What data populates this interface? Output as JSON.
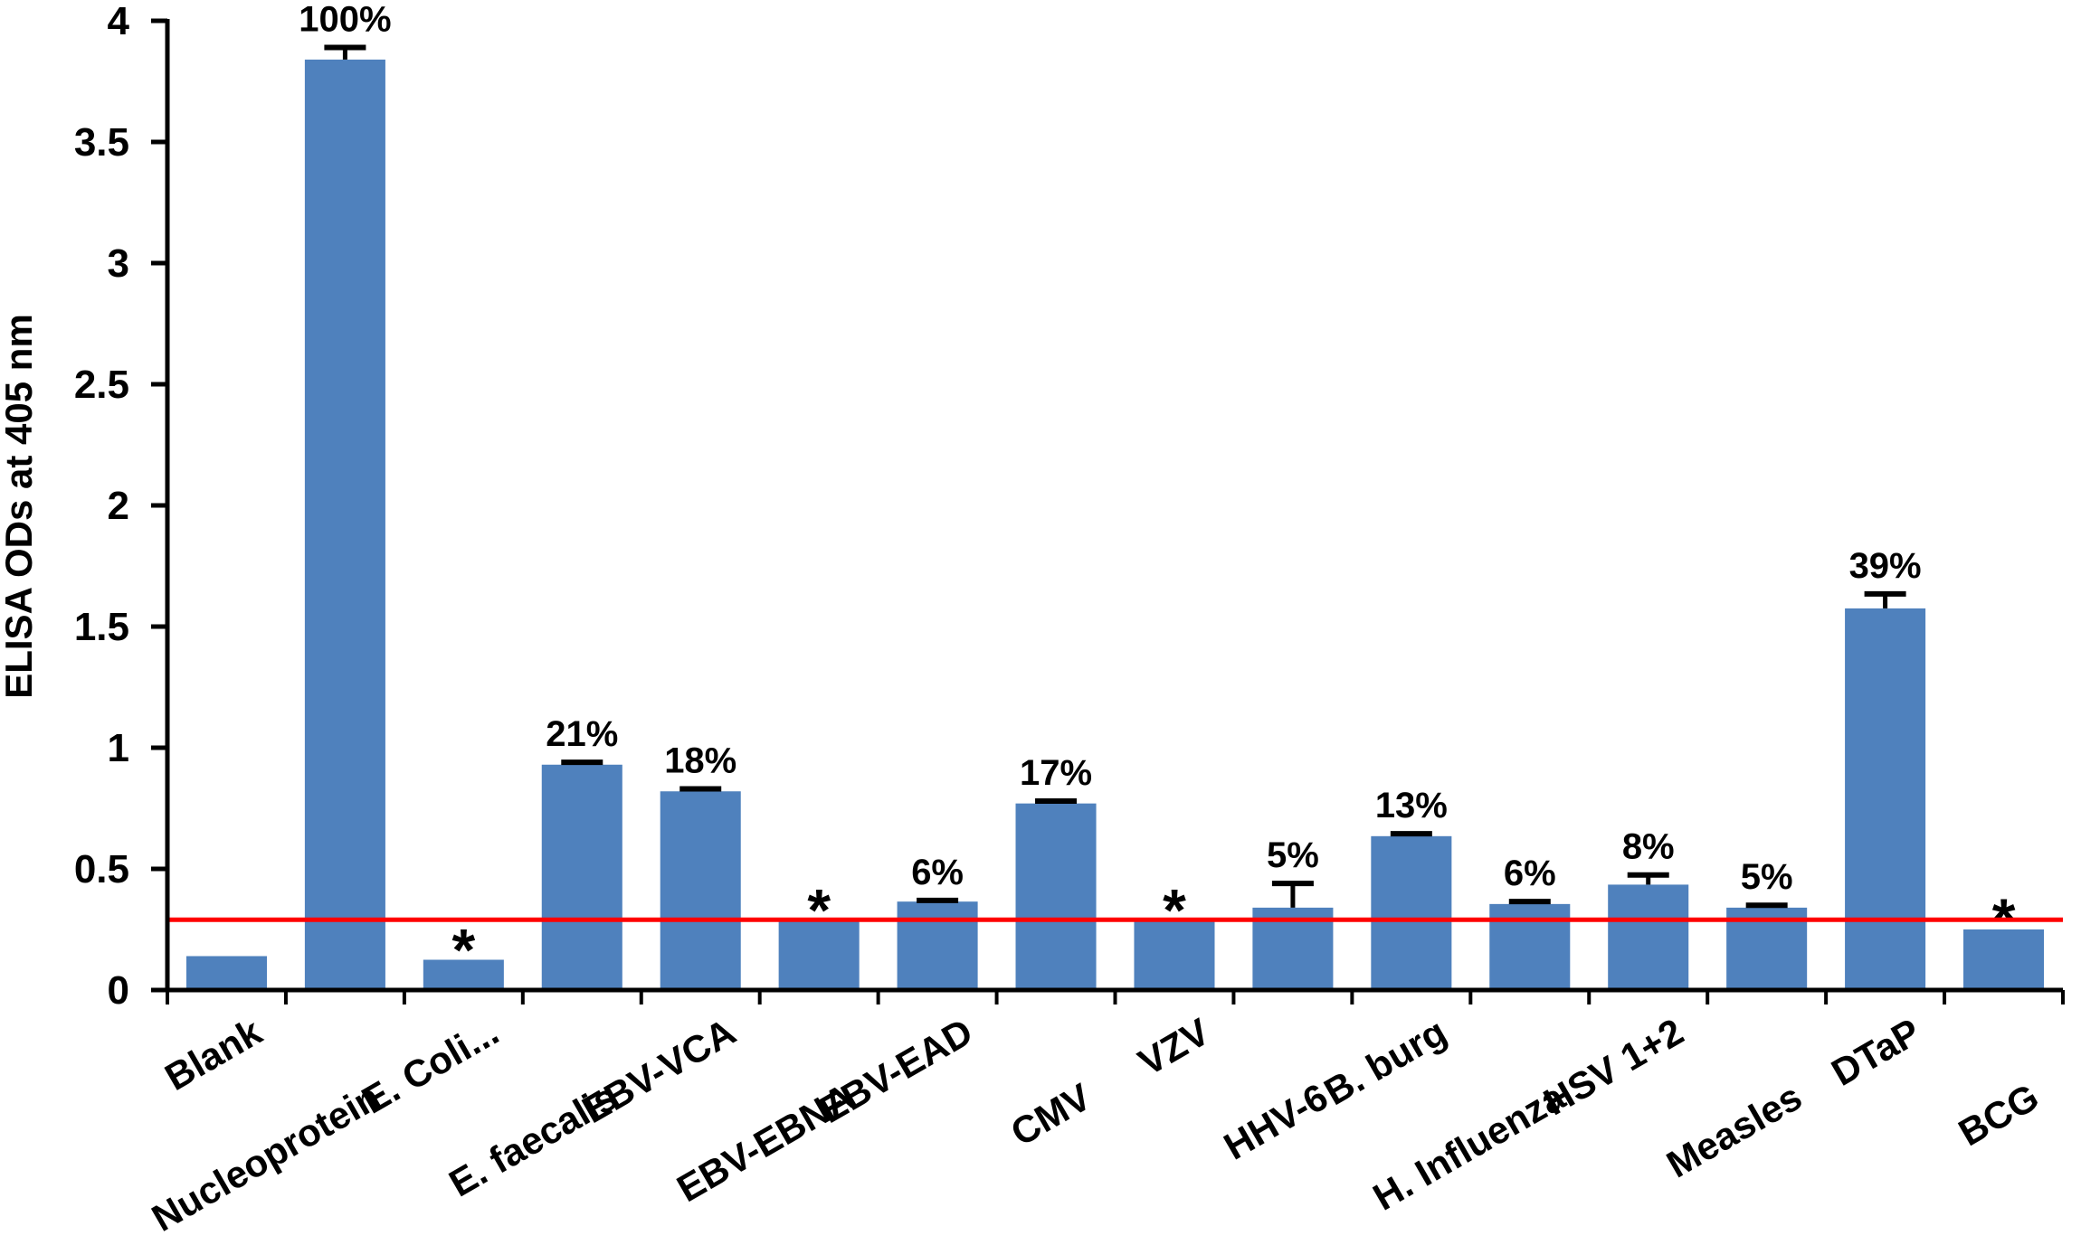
{
  "chart_data": {
    "type": "bar",
    "title": "",
    "xlabel": "",
    "ylabel": "ELISA ODs at 405 nm",
    "ylim": [
      0,
      4
    ],
    "yticks": [
      "0",
      "0.5",
      "1",
      "1.5",
      "2",
      "2.5",
      "3",
      "3.5",
      "4"
    ],
    "grid": false,
    "legend": "none",
    "bar_color": "#4f81bd",
    "cutoff_color": "#ff0000",
    "cutoff": 0.29,
    "categories": [
      "Blank",
      "Nucleoprotein",
      "E. Coli...",
      "E. faecalis",
      "EBV-VCA",
      "EBV-EBNA",
      "EBV-EAD",
      "CMV",
      "VZV",
      "HHV-6",
      "B. burg",
      "H. Influenza",
      "HSV 1+2",
      "Measles",
      "DTaP",
      "BCG"
    ],
    "values": [
      0.14,
      3.84,
      0.125,
      0.93,
      0.82,
      0.29,
      0.365,
      0.77,
      0.29,
      0.34,
      0.635,
      0.355,
      0.435,
      0.34,
      1.575,
      0.25
    ],
    "errors": [
      0,
      0.05,
      0,
      0.01,
      0.01,
      0,
      0.005,
      0.01,
      0,
      0.1,
      0.01,
      0.01,
      0.04,
      0.01,
      0.06,
      0
    ],
    "labels": [
      "",
      "100%",
      "*",
      "21%",
      "18%",
      "*",
      "6%",
      "17%",
      "*",
      "5%",
      "13%",
      "6%",
      "8%",
      "5%",
      "39%",
      "*"
    ]
  }
}
